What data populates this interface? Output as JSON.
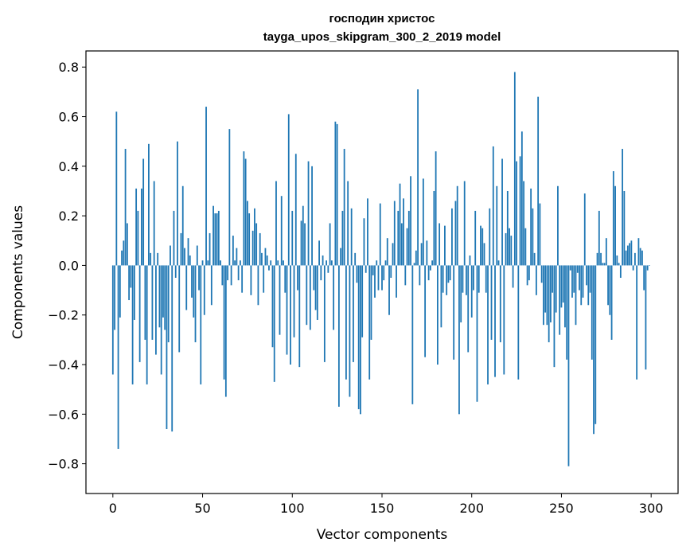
{
  "chart_data": {
    "type": "bar",
    "title_line1": "господин христос",
    "title_line2": "tayga_upos_skipgram_300_2_2019 model",
    "xlabel": "Vector components",
    "ylabel": "Components values",
    "xlim": [
      -15,
      315
    ],
    "ylim": [
      -0.92,
      0.865
    ],
    "xticks": [
      0,
      50,
      100,
      150,
      200,
      250,
      300
    ],
    "xtick_labels": [
      "0",
      "50",
      "100",
      "150",
      "200",
      "250",
      "300"
    ],
    "yticks": [
      -0.8,
      -0.6,
      -0.4,
      -0.2,
      0.0,
      0.2,
      0.4,
      0.6,
      0.8
    ],
    "ytick_labels": [
      "−0.8",
      "−0.6",
      "−0.4",
      "−0.2",
      "0.0",
      "0.2",
      "0.4",
      "0.6",
      "0.8"
    ],
    "bar_color": "#1f77b4",
    "x": "0..299",
    "values": [
      -0.44,
      -0.26,
      0.62,
      -0.74,
      -0.21,
      0.06,
      0.1,
      0.47,
      0.17,
      -0.14,
      -0.09,
      -0.48,
      -0.22,
      0.31,
      0.22,
      -0.39,
      0.31,
      0.43,
      -0.3,
      -0.48,
      0.49,
      0.05,
      -0.3,
      0.34,
      -0.36,
      0.05,
      -0.25,
      -0.44,
      -0.21,
      -0.26,
      -0.66,
      -0.31,
      0.08,
      -0.67,
      0.22,
      -0.05,
      0.5,
      -0.35,
      0.13,
      0.32,
      0.07,
      -0.18,
      0.11,
      0.04,
      -0.13,
      -0.21,
      -0.31,
      0.08,
      -0.1,
      -0.48,
      0.02,
      -0.2,
      0.64,
      0.02,
      0.13,
      -0.16,
      0.24,
      0.21,
      0.21,
      0.22,
      0.02,
      -0.08,
      -0.46,
      -0.53,
      -0.06,
      0.55,
      -0.08,
      0.12,
      0.02,
      0.07,
      -0.06,
      0.02,
      -0.11,
      0.46,
      0.43,
      0.26,
      0.21,
      -0.12,
      0.14,
      0.23,
      0.17,
      -0.16,
      0.13,
      0.05,
      -0.11,
      0.07,
      0.04,
      -0.02,
      0.02,
      -0.33,
      -0.47,
      0.34,
      0.02,
      -0.28,
      0.28,
      0.02,
      -0.11,
      -0.36,
      0.61,
      -0.4,
      0.22,
      -0.29,
      0.45,
      -0.1,
      -0.41,
      0.18,
      0.24,
      0.17,
      -0.24,
      0.42,
      -0.26,
      0.4,
      -0.1,
      -0.18,
      -0.22,
      0.1,
      -0.06,
      0.04,
      -0.39,
      0.02,
      -0.03,
      0.17,
      0.02,
      -0.26,
      0.58,
      0.57,
      -0.57,
      0.07,
      0.22,
      0.47,
      -0.46,
      0.34,
      -0.53,
      0.23,
      -0.39,
      0.05,
      -0.07,
      -0.58,
      -0.6,
      -0.29,
      0.19,
      -0.03,
      0.27,
      -0.46,
      -0.3,
      -0.04,
      -0.13,
      0.02,
      -0.1,
      0.25,
      -0.1,
      -0.06,
      0.02,
      0.11,
      -0.2,
      -0.05,
      0.09,
      0.26,
      -0.13,
      0.22,
      0.33,
      0.17,
      0.27,
      -0.08,
      0.15,
      0.22,
      0.36,
      -0.56,
      0.01,
      0.06,
      0.71,
      -0.08,
      0.09,
      0.35,
      -0.37,
      0.1,
      -0.06,
      -0.02,
      0.02,
      0.3,
      0.46,
      -0.4,
      0.17,
      -0.25,
      -0.11,
      0.16,
      -0.12,
      -0.07,
      -0.06,
      0.23,
      -0.38,
      0.26,
      0.32,
      -0.6,
      -0.23,
      -0.11,
      0.34,
      -0.12,
      -0.35,
      0.04,
      -0.21,
      -0.1,
      0.22,
      -0.55,
      -0.11,
      0.16,
      0.15,
      0.09,
      -0.11,
      -0.48,
      0.23,
      -0.3,
      0.48,
      -0.45,
      0.32,
      0.02,
      -0.31,
      0.43,
      -0.44,
      0.13,
      0.3,
      0.15,
      0.12,
      -0.09,
      0.78,
      0.42,
      -0.46,
      0.44,
      0.54,
      0.34,
      0.15,
      -0.08,
      -0.06,
      0.31,
      0.23,
      0.05,
      -0.12,
      0.68,
      0.25,
      -0.07,
      -0.24,
      -0.19,
      -0.24,
      -0.31,
      -0.23,
      -0.11,
      -0.41,
      -0.19,
      0.32,
      -0.28,
      -0.17,
      -0.15,
      -0.25,
      -0.38,
      -0.81,
      -0.02,
      -0.13,
      -0.11,
      -0.24,
      -0.03,
      -0.1,
      -0.16,
      -0.13,
      0.29,
      -0.08,
      -0.16,
      -0.11,
      -0.38,
      -0.68,
      -0.64,
      0.05,
      0.22,
      0.05,
      0.01,
      0.01,
      0.11,
      -0.16,
      -0.2,
      -0.3,
      0.38,
      0.32,
      0.04,
      0.01,
      -0.05,
      0.47,
      0.3,
      0.06,
      0.08,
      0.09,
      0.1,
      -0.02,
      0.05,
      -0.46,
      0.11,
      0.07,
      0.06,
      -0.1,
      -0.42,
      -0.02,
      0.0
    ]
  }
}
